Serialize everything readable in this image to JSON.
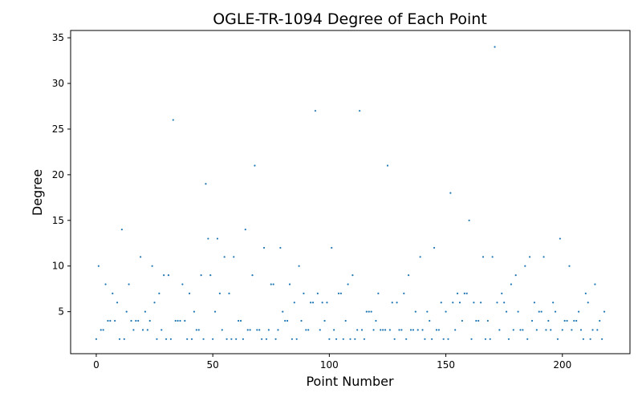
{
  "chart_data": {
    "type": "scatter",
    "title": "OGLE-TR-1094 Degree of Each Point",
    "xlabel": "Point Number",
    "ylabel": "Degree",
    "xlim": [
      -11,
      229
    ],
    "ylim": [
      0.4,
      35.8
    ],
    "xticks": [
      0,
      50,
      100,
      150,
      200
    ],
    "yticks": [
      5,
      10,
      15,
      20,
      25,
      30,
      35
    ],
    "grid": false,
    "legend": "none",
    "marker_color": "#1f77b4",
    "series": [
      {
        "x": [
          0,
          1,
          2,
          3,
          4,
          5,
          6,
          7,
          8,
          9,
          10,
          11,
          12,
          13,
          14,
          15,
          16,
          17,
          18,
          19,
          20,
          21,
          22,
          23,
          24,
          25,
          26,
          27,
          28,
          29,
          30,
          31,
          32,
          33,
          34,
          35,
          36,
          37,
          38,
          39,
          40,
          41,
          42,
          43,
          44,
          45,
          46,
          47,
          48,
          49,
          50,
          51,
          52,
          53,
          54,
          55,
          56,
          57,
          58,
          59,
          60,
          61,
          62,
          63,
          64,
          65,
          66,
          67,
          68,
          69,
          70,
          71,
          72,
          73,
          74,
          75,
          76,
          77,
          78,
          79,
          80,
          81,
          82,
          83,
          84,
          85,
          86,
          87,
          88,
          89,
          90,
          91,
          92,
          93,
          94,
          95,
          96,
          97,
          98,
          99,
          100,
          101,
          102,
          103,
          104,
          105,
          106,
          107,
          108,
          109,
          110,
          111,
          112,
          113,
          114,
          115,
          116,
          117,
          118,
          119,
          120,
          121,
          122,
          123,
          124,
          125,
          126,
          127,
          128,
          129,
          130,
          131,
          132,
          133,
          134,
          135,
          136,
          137,
          138,
          139,
          140,
          141,
          142,
          143,
          144,
          145,
          146,
          147,
          148,
          149,
          150,
          151,
          152,
          153,
          154,
          155,
          156,
          157,
          158,
          159,
          160,
          161,
          162,
          163,
          164,
          165,
          166,
          167,
          168,
          169,
          170,
          171,
          172,
          173,
          174,
          175,
          176,
          177,
          178,
          179,
          180,
          181,
          182,
          183,
          184,
          185,
          186,
          187,
          188,
          189,
          190,
          191,
          192,
          193,
          194,
          195,
          196,
          197,
          198,
          199,
          200,
          201,
          202,
          203,
          204,
          205,
          206,
          207,
          208,
          209,
          210,
          211,
          212,
          213,
          214,
          215,
          216,
          217,
          218
        ],
        "y": [
          2,
          10,
          3,
          3,
          8,
          4,
          4,
          7,
          4,
          6,
          2,
          14,
          2,
          5,
          8,
          4,
          3,
          4,
          4,
          11,
          3,
          5,
          3,
          4,
          10,
          6,
          2,
          7,
          3,
          9,
          2,
          9,
          2,
          26,
          4,
          4,
          4,
          8,
          4,
          2,
          7,
          2,
          5,
          3,
          3,
          9,
          2,
          19,
          13,
          9,
          2,
          5,
          13,
          7,
          3,
          11,
          2,
          7,
          2,
          11,
          2,
          4,
          4,
          2,
          14,
          3,
          3,
          9,
          21,
          3,
          3,
          2,
          12,
          2,
          3,
          8,
          8,
          2,
          3,
          12,
          5,
          4,
          4,
          8,
          2,
          6,
          2,
          10,
          4,
          7,
          3,
          3,
          6,
          6,
          27,
          7,
          3,
          6,
          4,
          6,
          2,
          12,
          3,
          2,
          7,
          7,
          2,
          4,
          8,
          2,
          9,
          2,
          3,
          27,
          3,
          2,
          5,
          5,
          5,
          3,
          4,
          7,
          3,
          3,
          3,
          21,
          3,
          6,
          2,
          6,
          3,
          3,
          7,
          2,
          9,
          3,
          3,
          5,
          3,
          11,
          3,
          2,
          5,
          4,
          2,
          12,
          3,
          3,
          6,
          2,
          5,
          2,
          18,
          6,
          3,
          7,
          6,
          4,
          7,
          7,
          15,
          2,
          6,
          4,
          4,
          6,
          11,
          2,
          4,
          2,
          11,
          34,
          6,
          3,
          7,
          6,
          5,
          2,
          8,
          3,
          9,
          5,
          3,
          3,
          10,
          2,
          11,
          4,
          6,
          3,
          5,
          5,
          11,
          3,
          4,
          3,
          6,
          5,
          2,
          13,
          3,
          4,
          4,
          10,
          3,
          4,
          4,
          5,
          3,
          2,
          7,
          6,
          2,
          3,
          8,
          3,
          4,
          2,
          5
        ]
      }
    ]
  }
}
